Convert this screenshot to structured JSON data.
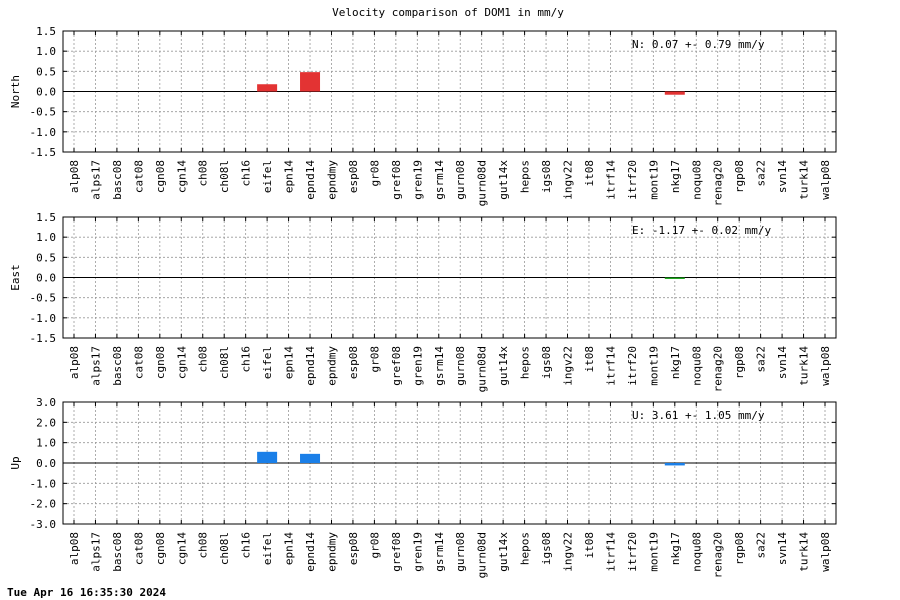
{
  "title": "Velocity comparison of DOM1 in mm/y",
  "timestamp": "Tue Apr 16 16:35:30 2024",
  "stations": [
    "alp08",
    "alps17",
    "basc08",
    "cat08",
    "cgn08",
    "cgn14",
    "ch08",
    "ch08l",
    "ch16",
    "eifel",
    "epn14",
    "epnd14",
    "epndmy",
    "esp08",
    "gr08",
    "gref08",
    "gren19",
    "gsrm14",
    "gurn08",
    "gurn08d",
    "gut14x",
    "hepos",
    "igs08",
    "ingv22",
    "it08",
    "itrf14",
    "itrf20",
    "mont19",
    "nkg17",
    "noqu08",
    "renag20",
    "rgp08",
    "sa22",
    "svn14",
    "turk14",
    "walp08"
  ],
  "chart_data": [
    {
      "type": "bar",
      "ylabel": "North",
      "color": "#e33333",
      "ylim": [
        -1.5,
        1.5
      ],
      "yticks": [
        "-1.5",
        "-1.0",
        "-0.5",
        "0.0",
        "0.5",
        "1.0",
        "1.5"
      ],
      "ytick_values": [
        -1.5,
        -1.0,
        -0.5,
        0.0,
        0.5,
        1.0,
        1.5
      ],
      "annotation": "N:   0.07 +-  0.79 mm/y",
      "values": [
        0,
        0,
        0,
        0,
        0,
        0,
        0,
        0,
        0,
        0.18,
        0,
        0.48,
        0,
        0,
        0,
        0,
        0,
        0,
        0,
        0,
        0,
        0,
        0,
        0,
        0,
        0,
        0,
        0,
        -0.08,
        0,
        0,
        0,
        0,
        0,
        0,
        0
      ]
    },
    {
      "type": "bar",
      "ylabel": "East",
      "color": "#22aa22",
      "ylim": [
        -1.5,
        1.5
      ],
      "yticks": [
        "-1.5",
        "-1.0",
        "-0.5",
        "0.0",
        "0.5",
        "1.0",
        "1.5"
      ],
      "ytick_values": [
        -1.5,
        -1.0,
        -0.5,
        0.0,
        0.5,
        1.0,
        1.5
      ],
      "annotation": "E:  -1.17 +-  0.02 mm/y",
      "values": [
        0,
        0,
        0,
        0,
        0,
        0,
        0,
        0,
        0,
        0,
        0,
        0,
        0,
        0,
        0,
        0,
        0,
        0,
        0,
        0,
        0,
        0,
        0,
        0,
        0,
        0,
        0,
        0,
        -0.02,
        0,
        0,
        0,
        0,
        0,
        0,
        0
      ]
    },
    {
      "type": "bar",
      "ylabel": "Up",
      "color": "#1a7fe8",
      "ylim": [
        -3.0,
        3.0
      ],
      "yticks": [
        "-3.0",
        "-2.0",
        "-1.0",
        "0.0",
        "1.0",
        "2.0",
        "3.0"
      ],
      "ytick_values": [
        -3.0,
        -2.0,
        -1.0,
        0.0,
        1.0,
        2.0,
        3.0
      ],
      "annotation": "U:   3.61 +-  1.05 mm/y",
      "values": [
        0,
        0,
        0,
        0,
        0,
        0,
        0,
        0,
        0,
        0.55,
        0,
        0.45,
        0,
        0,
        0,
        0,
        0,
        0,
        0,
        0,
        0,
        0,
        0,
        0,
        0,
        0,
        0,
        0,
        -0.12,
        0,
        0,
        0,
        0,
        0,
        0,
        0
      ]
    }
  ]
}
